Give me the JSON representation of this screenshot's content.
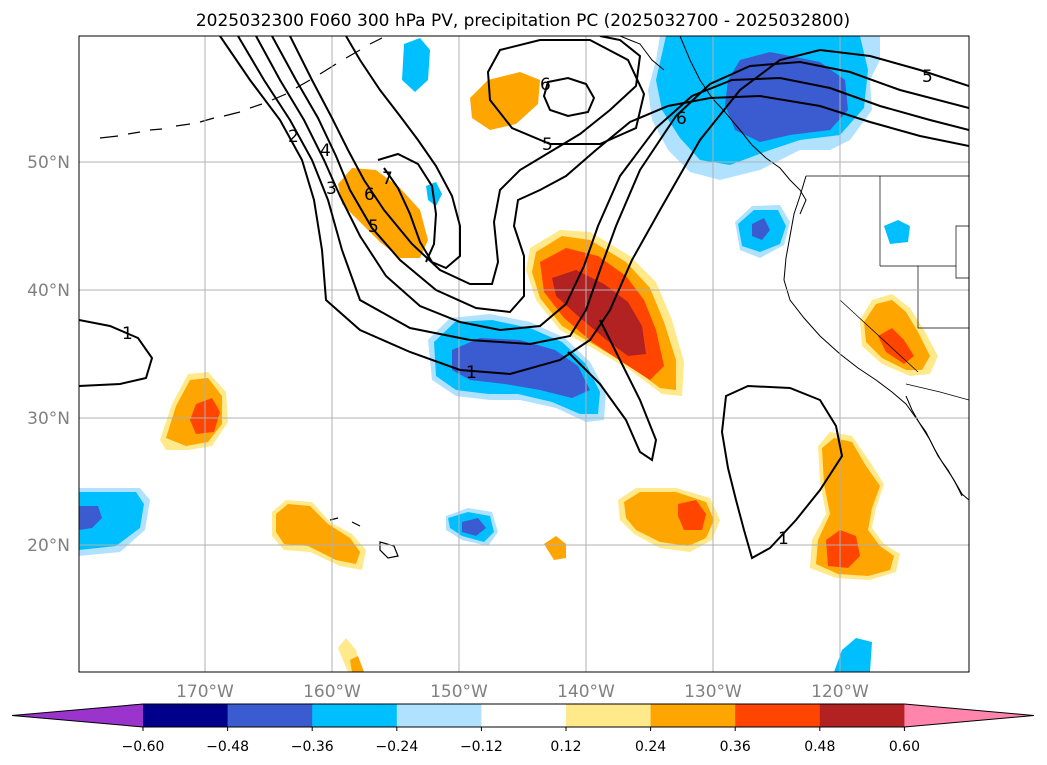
{
  "title": "2025032300 F060 300 hPa PV, precipitation PC (2025032700 - 2025032800)",
  "lat_labels": [
    "50°N",
    "40°N",
    "30°N",
    "20°N"
  ],
  "lon_labels": [
    "170°W",
    "160°W",
    "150°W",
    "140°W",
    "130°W",
    "120°W"
  ],
  "colorbar": {
    "ticks": [
      "−0.60",
      "−0.48",
      "−0.36",
      "−0.24",
      "−0.12",
      "0.12",
      "0.24",
      "0.36",
      "0.48",
      "0.60"
    ],
    "colors": [
      "#9a34cd",
      "#00008b",
      "#3b5bd0",
      "#00bfff",
      "#b0e2ff",
      "#ffffff",
      "#ffe98a",
      "#ffa500",
      "#ff4500",
      "#b22222",
      "#ff85ad"
    ]
  },
  "contour_labels": {
    "c1": "1",
    "c2": "2",
    "c3": "3",
    "c4": "4",
    "c5": "5",
    "c6": "6",
    "c7": "7",
    "c1b": "1",
    "c1c": "1",
    "c5b": "5",
    "c6b": "6",
    "c5c": "5",
    "c6c": "6"
  }
}
